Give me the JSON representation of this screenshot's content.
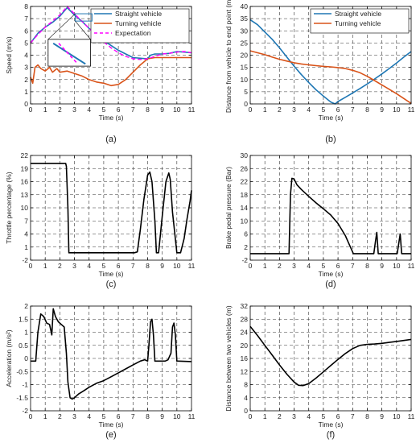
{
  "colors": {
    "straight": "#1f77b4",
    "turning": "#d95319",
    "expectation": "#ff00ff",
    "black": "#000000"
  },
  "chart_data": [
    {
      "id": "a",
      "type": "line",
      "caption": "(a)",
      "xlabel": "Time (s)",
      "ylabel": "Speed (m/s)",
      "xlim": [
        0,
        11
      ],
      "ylim": [
        0,
        8
      ],
      "xticks": [
        0,
        1,
        2,
        3,
        4,
        5,
        6,
        7,
        8,
        9,
        10,
        11
      ],
      "yticks": [
        0,
        1,
        2,
        3,
        4,
        5,
        6,
        7,
        8
      ],
      "grid": true,
      "legend": "top-right",
      "inset": "zoom box near the peak",
      "series": [
        {
          "name": "Straight vehicle",
          "color": "#1f77b4",
          "dash": false,
          "x": [
            0,
            0.5,
            1,
            1.5,
            2,
            2.5,
            3,
            3.5,
            4,
            4.5,
            5,
            5.5,
            6,
            6.5,
            7,
            7.5,
            8,
            8.2,
            8.5,
            9,
            9.5,
            10,
            10.5,
            11
          ],
          "y": [
            5.0,
            5.8,
            6.3,
            6.7,
            7.2,
            7.9,
            7.3,
            6.8,
            6.2,
            5.7,
            5.2,
            4.8,
            4.4,
            4.1,
            3.8,
            3.75,
            3.7,
            4.0,
            4.1,
            4.1,
            4.15,
            4.3,
            4.25,
            4.2
          ]
        },
        {
          "name": "Turning vehicle",
          "color": "#d95319",
          "dash": false,
          "x": [
            0,
            0.15,
            0.3,
            0.5,
            0.7,
            1,
            1.3,
            1.5,
            1.8,
            2,
            2.5,
            3,
            3.5,
            4,
            4.5,
            5,
            5.5,
            6,
            6.5,
            7,
            7.5,
            8,
            8.5,
            9,
            10,
            11
          ],
          "y": [
            2.2,
            1.7,
            3.0,
            3.2,
            2.9,
            2.7,
            3.0,
            2.6,
            2.9,
            2.6,
            2.7,
            2.5,
            2.3,
            2.0,
            1.8,
            1.7,
            1.5,
            1.6,
            2.0,
            2.6,
            3.2,
            3.7,
            3.8,
            3.8,
            3.8,
            3.8
          ]
        },
        {
          "name": "Expectation",
          "color": "#ff00ff",
          "dash": true,
          "x": [
            0,
            0.5,
            1,
            1.5,
            2,
            2.5,
            3,
            3.5,
            4,
            4.5,
            5,
            5.5,
            6,
            6.5,
            7,
            7.5,
            8,
            8.5,
            9,
            9.5,
            10,
            10.5,
            11
          ],
          "y": [
            5.0,
            5.7,
            6.3,
            6.8,
            7.3,
            8.0,
            7.4,
            6.8,
            6.2,
            5.6,
            5.1,
            4.6,
            4.2,
            3.9,
            3.7,
            3.65,
            3.7,
            3.9,
            4.1,
            4.15,
            4.25,
            4.3,
            4.2
          ]
        }
      ]
    },
    {
      "id": "b",
      "type": "line",
      "caption": "(b)",
      "xlabel": "Time (s)",
      "ylabel": "Distance from vehicle to end point (m)",
      "xlim": [
        0,
        11
      ],
      "ylim": [
        0,
        40
      ],
      "xticks": [
        0,
        1,
        2,
        3,
        4,
        5,
        6,
        7,
        8,
        9,
        10,
        11
      ],
      "yticks": [
        0,
        5,
        10,
        15,
        20,
        25,
        30,
        35,
        40
      ],
      "grid": true,
      "legend": "top-right",
      "series": [
        {
          "name": "Straight vehicle",
          "color": "#1f77b4",
          "dash": false,
          "x": [
            0,
            0.5,
            1,
            1.5,
            2,
            2.5,
            3,
            3.5,
            4,
            4.5,
            5,
            5.5,
            5.8,
            6,
            6.5,
            7,
            7.5,
            8,
            8.5,
            9,
            9.5,
            10,
            10.5,
            11
          ],
          "y": [
            34.5,
            32.5,
            29.5,
            26.5,
            23,
            19.2,
            15.5,
            12,
            8.8,
            5.8,
            3.2,
            0.8,
            0,
            1,
            2.7,
            4.5,
            6.3,
            8.2,
            10.2,
            12.3,
            14.5,
            16.8,
            19.2,
            21.5
          ]
        },
        {
          "name": "Turning vehicle",
          "color": "#d95319",
          "dash": false,
          "x": [
            0,
            0.5,
            1,
            1.5,
            2,
            2.5,
            3,
            3.5,
            4,
            4.5,
            5,
            5.5,
            6,
            6.5,
            7,
            7.5,
            8,
            8.5,
            9,
            9.5,
            10,
            10.5,
            11
          ],
          "y": [
            21.8,
            21.0,
            20.2,
            19.2,
            18.3,
            17.6,
            16.9,
            16.4,
            16.0,
            15.7,
            15.4,
            15.2,
            14.9,
            14.5,
            13.8,
            12.8,
            11.3,
            9.6,
            7.8,
            6.0,
            4.2,
            2.2,
            0.2
          ]
        }
      ]
    },
    {
      "id": "c",
      "type": "line",
      "caption": "(c)",
      "xlabel": "Time (s)",
      "ylabel": "Throttle percentage (%)",
      "xlim": [
        0,
        11
      ],
      "ylim": [
        -2,
        22
      ],
      "xticks": [
        0,
        1,
        2,
        3,
        4,
        5,
        6,
        7,
        8,
        9,
        10,
        11
      ],
      "yticks": [
        -2,
        1,
        4,
        7,
        10,
        13,
        16,
        19,
        22
      ],
      "grid": true,
      "legend": null,
      "series": [
        {
          "name": "",
          "color": "#000000",
          "dash": false,
          "x": [
            0,
            2.4,
            2.45,
            2.55,
            2.62,
            7,
            7.1,
            7.3,
            7.5,
            7.75,
            8,
            8.15,
            8.3,
            8.5,
            8.6,
            8.75,
            9,
            9.25,
            9.45,
            9.55,
            9.7,
            10,
            10.25,
            10.5,
            10.7,
            10.9,
            11
          ],
          "y": [
            20.2,
            20.2,
            19.5,
            10,
            -0.3,
            -0.3,
            -0.3,
            -0.1,
            5,
            12,
            17.5,
            18.2,
            16,
            7,
            -0.3,
            -0.3,
            8,
            16,
            18,
            16.5,
            9,
            -0.3,
            -0.3,
            3,
            7.5,
            11.5,
            14
          ]
        }
      ]
    },
    {
      "id": "d",
      "type": "line",
      "caption": "(d)",
      "xlabel": "Time (s)",
      "ylabel": "Brake pedal pressure (Bar)",
      "xlim": [
        0,
        11
      ],
      "ylim": [
        -2,
        30
      ],
      "xticks": [
        0,
        1,
        2,
        3,
        4,
        5,
        6,
        7,
        8,
        9,
        10,
        11
      ],
      "yticks": [
        -2,
        2,
        6,
        10,
        14,
        18,
        22,
        26,
        30
      ],
      "grid": true,
      "legend": null,
      "series": [
        {
          "name": "",
          "color": "#000000",
          "dash": false,
          "x": [
            0,
            2.65,
            2.75,
            2.85,
            3,
            3.2,
            3.5,
            4,
            4.5,
            5,
            5.5,
            6,
            6.5,
            6.8,
            7.05,
            8.45,
            8.55,
            8.65,
            8.75,
            10.05,
            10.15,
            10.25,
            10.35,
            11
          ],
          "y": [
            0,
            0,
            18,
            23,
            22.8,
            21,
            19.6,
            17.5,
            15.5,
            13.7,
            11.8,
            9.2,
            5.5,
            2.5,
            0,
            0,
            3.5,
            6.5,
            0,
            0,
            3,
            6,
            0,
            0
          ]
        }
      ]
    },
    {
      "id": "e",
      "type": "line",
      "caption": "(e)",
      "xlabel": "Time (s)",
      "ylabel": "Acceleration (m/s²)",
      "xlim": [
        0,
        11
      ],
      "ylim": [
        -2,
        2
      ],
      "xticks": [
        0,
        1,
        2,
        3,
        4,
        5,
        6,
        7,
        8,
        9,
        10,
        11
      ],
      "yticks": [
        -2,
        -1.5,
        -1,
        -0.5,
        0,
        0.5,
        1,
        1.5,
        2
      ],
      "grid": true,
      "legend": null,
      "series": [
        {
          "name": "",
          "color": "#000000",
          "dash": false,
          "x": [
            0,
            0.35,
            0.5,
            0.7,
            0.9,
            1.1,
            1.3,
            1.45,
            1.55,
            1.7,
            1.9,
            2.1,
            2.3,
            2.45,
            2.55,
            2.7,
            2.85,
            3,
            3.3,
            3.6,
            4,
            4.5,
            5,
            5.5,
            6,
            6.5,
            7,
            7.5,
            7.8,
            8,
            8.1,
            8.2,
            8.3,
            8.4,
            8.5,
            8.6,
            9,
            9.2,
            9.4,
            9.6,
            9.7,
            9.8,
            9.9,
            10,
            10.1,
            11
          ],
          "y": [
            -0.1,
            -0.1,
            1.0,
            1.7,
            1.6,
            1.35,
            1.3,
            0.9,
            1.9,
            1.6,
            1.4,
            1.3,
            1.2,
            0.2,
            -0.9,
            -1.5,
            -1.55,
            -1.5,
            -1.35,
            -1.25,
            -1.1,
            -0.95,
            -0.85,
            -0.7,
            -0.55,
            -0.4,
            -0.25,
            -0.1,
            -0.05,
            -0.1,
            0.6,
            1.4,
            1.5,
            0.9,
            -0.1,
            -0.1,
            -0.1,
            -0.1,
            -0.05,
            0.2,
            1.2,
            1.35,
            0.9,
            -0.1,
            -0.1,
            -0.12
          ]
        }
      ]
    },
    {
      "id": "f",
      "type": "line",
      "caption": "(f)",
      "xlabel": "Time (s)",
      "ylabel": "Distance between two vehicles (m)",
      "xlim": [
        0,
        11
      ],
      "ylim": [
        0,
        32
      ],
      "xticks": [
        0,
        1,
        2,
        3,
        4,
        5,
        6,
        7,
        8,
        9,
        10,
        11
      ],
      "yticks": [
        0,
        4,
        8,
        12,
        16,
        20,
        24,
        28,
        32
      ],
      "grid": true,
      "legend": null,
      "series": [
        {
          "name": "",
          "color": "#000000",
          "dash": false,
          "x": [
            0,
            0.5,
            1,
            1.5,
            2,
            2.5,
            3,
            3.3,
            3.6,
            4,
            4.5,
            5,
            5.5,
            6,
            6.5,
            7,
            7.5,
            8,
            8.5,
            9,
            9.5,
            10,
            10.5,
            11
          ],
          "y": [
            25.8,
            23.0,
            20.0,
            17.0,
            14.0,
            11.2,
            8.8,
            7.8,
            7.7,
            8.3,
            10.0,
            11.9,
            13.8,
            15.7,
            17.5,
            19.0,
            20.0,
            20.3,
            20.4,
            20.6,
            20.9,
            21.2,
            21.5,
            21.8
          ]
        }
      ]
    }
  ]
}
